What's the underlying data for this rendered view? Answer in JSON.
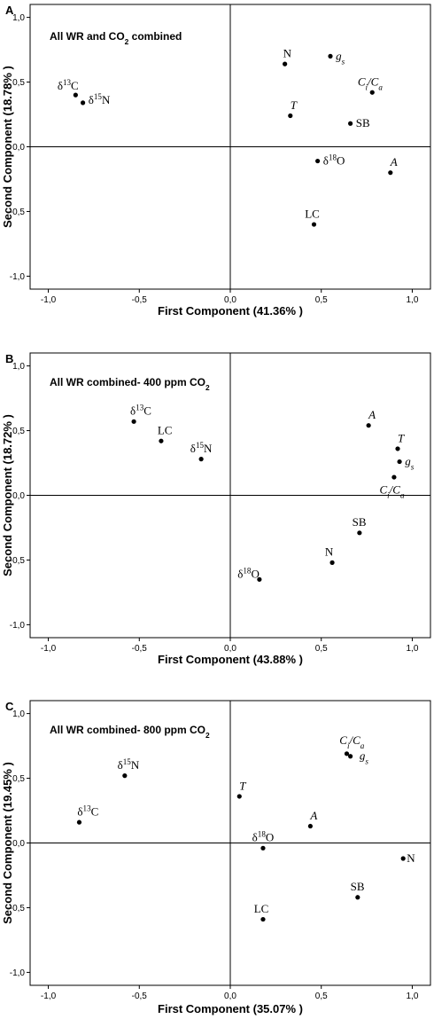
{
  "chart_data": [
    {
      "type": "scatter",
      "panel": "A",
      "title_parts": [
        {
          "t": "All WR and CO"
        },
        {
          "t": "2",
          "sub": true
        },
        {
          "t": " combined"
        }
      ],
      "xlabel": "First Component (41.36% )",
      "ylabel": "Second Component (18.78% )",
      "xlim": [
        -1.1,
        1.1
      ],
      "ylim": [
        -1.1,
        1.1
      ],
      "ticks": [
        -1.0,
        -0.5,
        0.0,
        0.5,
        1.0
      ],
      "tick_labels": [
        "-1,0",
        "-0,5",
        "0,0",
        "0,5",
        "1,0"
      ],
      "points": [
        {
          "id": "N",
          "x": 0.3,
          "y": 0.64,
          "label": [
            {
              "t": "N"
            }
          ],
          "lx": -0.01,
          "ly": 0.08
        },
        {
          "id": "gs",
          "x": 0.55,
          "y": 0.7,
          "label": [
            {
              "t": "g",
              "i": true
            },
            {
              "t": "s",
              "i": true,
              "sub": true
            }
          ],
          "lx": 0.03,
          "ly": 0.0
        },
        {
          "id": "CiCa",
          "x": 0.78,
          "y": 0.42,
          "label": [
            {
              "t": "C",
              "i": true
            },
            {
              "t": "i",
              "i": true,
              "sub": true
            },
            {
              "t": "/",
              "i": true
            },
            {
              "t": "C",
              "i": true
            },
            {
              "t": "a",
              "i": true,
              "sub": true
            }
          ],
          "lx": -0.08,
          "ly": 0.08
        },
        {
          "id": "T",
          "x": 0.33,
          "y": 0.24,
          "label": [
            {
              "t": "T",
              "i": true
            }
          ],
          "lx": 0.0,
          "ly": 0.08
        },
        {
          "id": "SB",
          "x": 0.66,
          "y": 0.18,
          "label": [
            {
              "t": "SB"
            }
          ],
          "lx": 0.03,
          "ly": 0.0
        },
        {
          "id": "d13C",
          "x": -0.85,
          "y": 0.4,
          "label": [
            {
              "t": "δ"
            },
            {
              "t": "13",
              "sup": true
            },
            {
              "t": "C"
            }
          ],
          "lx": -0.1,
          "ly": 0.07
        },
        {
          "id": "d15N",
          "x": -0.81,
          "y": 0.34,
          "label": [
            {
              "t": "δ"
            },
            {
              "t": "15",
              "sup": true
            },
            {
              "t": "N"
            }
          ],
          "lx": 0.03,
          "ly": 0.02
        },
        {
          "id": "d18O",
          "x": 0.48,
          "y": -0.11,
          "label": [
            {
              "t": "δ"
            },
            {
              "t": "18",
              "sup": true
            },
            {
              "t": "O"
            }
          ],
          "lx": 0.03,
          "ly": 0.0
        },
        {
          "id": "A",
          "x": 0.88,
          "y": -0.2,
          "label": [
            {
              "t": "A",
              "i": true
            }
          ],
          "lx": 0.0,
          "ly": 0.08
        },
        {
          "id": "LC",
          "x": 0.46,
          "y": -0.6,
          "label": [
            {
              "t": "LC"
            }
          ],
          "lx": -0.05,
          "ly": 0.08
        }
      ]
    },
    {
      "type": "scatter",
      "panel": "B",
      "title_parts": [
        {
          "t": "All WR combined- 400 ppm CO"
        },
        {
          "t": "2",
          "sub": true
        }
      ],
      "xlabel": "First Component  (43.88% )",
      "ylabel": "Second Component  (18.72% )",
      "xlim": [
        -1.1,
        1.1
      ],
      "ylim": [
        -1.1,
        1.1
      ],
      "ticks": [
        -1.0,
        -0.5,
        0.0,
        0.5,
        1.0
      ],
      "tick_labels": [
        "-1,0",
        "-0,5",
        "0,0",
        "0,5",
        "1,0"
      ],
      "points": [
        {
          "id": "d13C",
          "x": -0.53,
          "y": 0.57,
          "label": [
            {
              "t": "δ"
            },
            {
              "t": "13",
              "sup": true
            },
            {
              "t": "C"
            }
          ],
          "lx": -0.02,
          "ly": 0.08
        },
        {
          "id": "LC",
          "x": -0.38,
          "y": 0.42,
          "label": [
            {
              "t": "LC"
            }
          ],
          "lx": -0.02,
          "ly": 0.08
        },
        {
          "id": "d15N",
          "x": -0.16,
          "y": 0.28,
          "label": [
            {
              "t": "δ"
            },
            {
              "t": "15",
              "sup": true
            },
            {
              "t": "N"
            }
          ],
          "lx": -0.06,
          "ly": 0.08
        },
        {
          "id": "A",
          "x": 0.76,
          "y": 0.54,
          "label": [
            {
              "t": "A",
              "i": true
            }
          ],
          "lx": 0.0,
          "ly": 0.08
        },
        {
          "id": "T",
          "x": 0.92,
          "y": 0.36,
          "label": [
            {
              "t": "T",
              "i": true
            }
          ],
          "lx": 0.0,
          "ly": 0.08
        },
        {
          "id": "gs",
          "x": 0.93,
          "y": 0.26,
          "label": [
            {
              "t": "g",
              "i": true
            },
            {
              "t": "s",
              "i": true,
              "sub": true
            }
          ],
          "lx": 0.03,
          "ly": 0.0
        },
        {
          "id": "CiCa",
          "x": 0.9,
          "y": 0.14,
          "label": [
            {
              "t": "C",
              "i": true
            },
            {
              "t": "i",
              "i": true,
              "sub": true
            },
            {
              "t": "/",
              "i": true
            },
            {
              "t": "C",
              "i": true
            },
            {
              "t": "a",
              "i": true,
              "sub": true
            }
          ],
          "lx": -0.08,
          "ly": -0.1
        },
        {
          "id": "SB",
          "x": 0.71,
          "y": -0.29,
          "label": [
            {
              "t": "SB"
            }
          ],
          "lx": -0.04,
          "ly": 0.08
        },
        {
          "id": "N",
          "x": 0.56,
          "y": -0.52,
          "label": [
            {
              "t": "N"
            }
          ],
          "lx": -0.04,
          "ly": 0.08
        },
        {
          "id": "d18O",
          "x": 0.16,
          "y": -0.65,
          "label": [
            {
              "t": "δ"
            },
            {
              "t": "18",
              "sup": true
            },
            {
              "t": "O"
            }
          ],
          "lx": -0.12,
          "ly": 0.04
        }
      ]
    },
    {
      "type": "scatter",
      "panel": "C",
      "title_parts": [
        {
          "t": "All WR combined- 800 ppm CO"
        },
        {
          "t": "2",
          "sub": true
        }
      ],
      "xlabel": "First Component (35.07% )",
      "ylabel": "Second Component  (19.45% )",
      "xlim": [
        -1.1,
        1.1
      ],
      "ylim": [
        -1.1,
        1.1
      ],
      "ticks": [
        -1.0,
        -0.5,
        0.0,
        0.5,
        1.0
      ],
      "tick_labels": [
        "-1,0",
        "-0,5",
        "0,0",
        "0,5",
        "1,0"
      ],
      "points": [
        {
          "id": "d15N",
          "x": -0.58,
          "y": 0.52,
          "label": [
            {
              "t": "δ"
            },
            {
              "t": "15",
              "sup": true
            },
            {
              "t": "N"
            }
          ],
          "lx": -0.04,
          "ly": 0.08
        },
        {
          "id": "d13C",
          "x": -0.83,
          "y": 0.16,
          "label": [
            {
              "t": "δ"
            },
            {
              "t": "13",
              "sup": true
            },
            {
              "t": "C"
            }
          ],
          "lx": -0.01,
          "ly": 0.08
        },
        {
          "id": "CiCa",
          "x": 0.64,
          "y": 0.69,
          "label": [
            {
              "t": "C",
              "i": true
            },
            {
              "t": "i",
              "i": true,
              "sub": true
            },
            {
              "t": "/",
              "i": true
            },
            {
              "t": "C",
              "i": true
            },
            {
              "t": "a",
              "i": true,
              "sub": true
            }
          ],
          "lx": -0.04,
          "ly": 0.1
        },
        {
          "id": "gs",
          "x": 0.66,
          "y": 0.67,
          "label": [
            {
              "t": "g",
              "i": true
            },
            {
              "t": "s",
              "i": true,
              "sub": true
            }
          ],
          "lx": 0.05,
          "ly": 0.0
        },
        {
          "id": "T",
          "x": 0.05,
          "y": 0.36,
          "label": [
            {
              "t": "T",
              "i": true
            }
          ],
          "lx": 0.0,
          "ly": 0.08
        },
        {
          "id": "A",
          "x": 0.44,
          "y": 0.13,
          "label": [
            {
              "t": "A",
              "i": true
            }
          ],
          "lx": 0.0,
          "ly": 0.08
        },
        {
          "id": "d18O",
          "x": 0.18,
          "y": -0.04,
          "label": [
            {
              "t": "δ"
            },
            {
              "t": "18",
              "sup": true
            },
            {
              "t": "O"
            }
          ],
          "lx": -0.06,
          "ly": 0.08
        },
        {
          "id": "N",
          "x": 0.95,
          "y": -0.12,
          "label": [
            {
              "t": "N"
            }
          ],
          "lx": 0.02,
          "ly": 0.0
        },
        {
          "id": "SB",
          "x": 0.7,
          "y": -0.42,
          "label": [
            {
              "t": "SB"
            }
          ],
          "lx": -0.04,
          "ly": 0.08
        },
        {
          "id": "LC",
          "x": 0.18,
          "y": -0.59,
          "label": [
            {
              "t": "LC"
            }
          ],
          "lx": -0.05,
          "ly": 0.08
        }
      ]
    }
  ]
}
